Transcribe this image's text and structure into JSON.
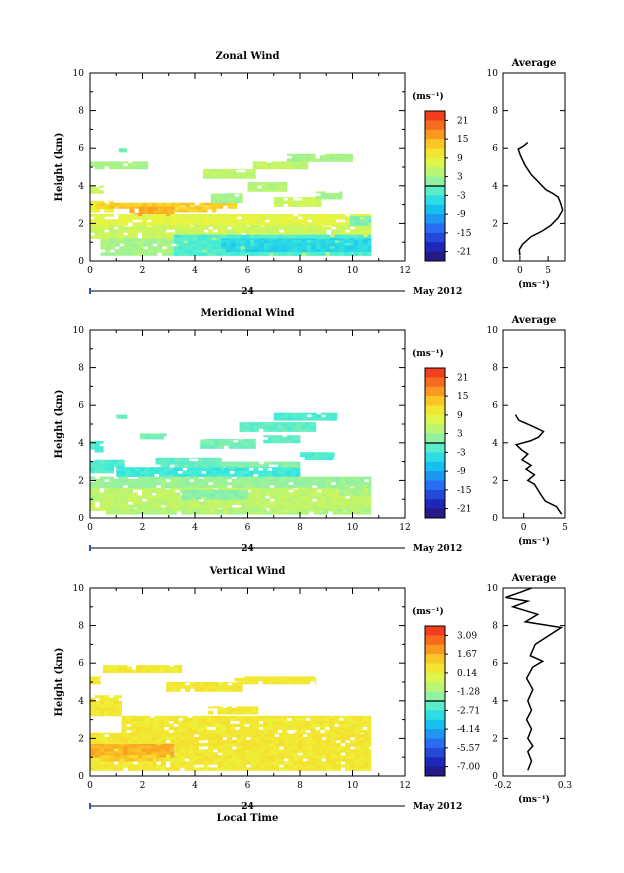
{
  "chart_data": [
    {
      "type": "heatmap",
      "title": "Zonal Wind",
      "ylabel": "Height (km)",
      "xlabel": "",
      "xlim": [
        0,
        12
      ],
      "ylim": [
        0,
        10
      ],
      "xticks": [
        "0",
        "2",
        "4",
        "6",
        "8",
        "10",
        "12"
      ],
      "yticks": [
        "0",
        "2",
        "4",
        "6",
        "8",
        "10"
      ],
      "date_marker": "24",
      "date_label": "May 2012",
      "colorbar": {
        "unit": "(ms⁻¹)",
        "ticks": [
          "21",
          "15",
          "9",
          "3",
          "-3",
          "-9",
          "-15",
          "-21"
        ],
        "min": -24,
        "max": 24
      },
      "regions": [
        {
          "x0": 0,
          "x1": 2.2,
          "y0": 4.9,
          "y1": 5.3,
          "v": 3
        },
        {
          "x0": 0,
          "x1": 0.5,
          "y0": 3.6,
          "y1": 4.0,
          "v": 6
        },
        {
          "x0": 0,
          "x1": 0.9,
          "y0": 2.6,
          "y1": 3.2,
          "v": 9
        },
        {
          "x0": 0.2,
          "x1": 5.6,
          "y0": 2.8,
          "y1": 3.1,
          "v": 13
        },
        {
          "x0": 1.5,
          "x1": 3.2,
          "y0": 2.4,
          "y1": 2.9,
          "v": 15
        },
        {
          "x0": 3.2,
          "x1": 4.8,
          "y0": 2.6,
          "y1": 2.9,
          "v": 13
        },
        {
          "x0": 0,
          "x1": 10.7,
          "y0": 1.9,
          "y1": 2.5,
          "v": 8
        },
        {
          "x0": 0,
          "x1": 10.7,
          "y0": 1.2,
          "y1": 1.9,
          "v": 6
        },
        {
          "x0": 0.4,
          "x1": 10.7,
          "y0": 0.3,
          "y1": 1.2,
          "v": 3
        },
        {
          "x0": 3.2,
          "x1": 10.7,
          "y0": 0.3,
          "y1": 1.4,
          "v": -2
        },
        {
          "x0": 5.0,
          "x1": 10.7,
          "y0": 0.5,
          "y1": 1.2,
          "v": -5
        },
        {
          "x0": 4.6,
          "x1": 5.8,
          "y0": 3.1,
          "y1": 3.6,
          "v": 3
        },
        {
          "x0": 6.0,
          "x1": 7.5,
          "y0": 3.7,
          "y1": 4.2,
          "v": 4
        },
        {
          "x0": 7.0,
          "x1": 8.8,
          "y0": 2.9,
          "y1": 3.4,
          "v": 6
        },
        {
          "x0": 8.6,
          "x1": 9.6,
          "y0": 3.3,
          "y1": 3.7,
          "v": 3
        },
        {
          "x0": 4.3,
          "x1": 6.3,
          "y0": 4.4,
          "y1": 4.9,
          "v": 5
        },
        {
          "x0": 6.2,
          "x1": 8.3,
          "y0": 4.9,
          "y1": 5.3,
          "v": 5
        },
        {
          "x0": 7.5,
          "x1": 10.0,
          "y0": 5.3,
          "y1": 5.7,
          "v": 3
        },
        {
          "x0": 1.1,
          "x1": 1.4,
          "y0": 5.8,
          "y1": 6.0,
          "v": 0
        },
        {
          "x0": 9.9,
          "x1": 10.7,
          "y0": 1.9,
          "y1": 2.4,
          "v": 0
        }
      ],
      "average": {
        "title": "Average",
        "unit": "(ms⁻¹)",
        "xlim": [
          -3,
          8
        ],
        "xticks": [
          0,
          5
        ],
        "ylim": [
          0,
          10
        ],
        "yticks": [
          "0",
          "2",
          "4",
          "6",
          "8",
          "10"
        ],
        "profile": [
          [
            0.0,
            0.3
          ],
          [
            -0.1,
            0.6
          ],
          [
            0.5,
            0.9
          ],
          [
            2.0,
            1.3
          ],
          [
            4.0,
            1.6
          ],
          [
            5.5,
            1.9
          ],
          [
            6.8,
            2.3
          ],
          [
            7.6,
            2.7
          ],
          [
            7.2,
            3.1
          ],
          [
            6.8,
            3.4
          ],
          [
            5.8,
            3.6
          ],
          [
            4.6,
            3.8
          ],
          [
            3.3,
            4.2
          ],
          [
            2.0,
            4.6
          ],
          [
            0.9,
            5.1
          ],
          [
            0.1,
            5.6
          ],
          [
            -0.3,
            5.95
          ],
          [
            0.6,
            6.1
          ],
          [
            1.4,
            6.3
          ]
        ]
      }
    },
    {
      "type": "heatmap",
      "title": "Meridional Wind",
      "ylabel": "Height (km)",
      "xlabel": "",
      "xlim": [
        0,
        12
      ],
      "ylim": [
        0,
        10
      ],
      "xticks": [
        "0",
        "2",
        "4",
        "6",
        "8",
        "10",
        "12"
      ],
      "yticks": [
        "0",
        "2",
        "4",
        "6",
        "8",
        "10"
      ],
      "date_marker": "24",
      "date_label": "May 2012",
      "colorbar": {
        "unit": "(ms⁻¹)",
        "ticks": [
          "21",
          "15",
          "9",
          "3",
          "-3",
          "-9",
          "-15",
          "-21"
        ],
        "min": -24,
        "max": 24
      },
      "regions": [
        {
          "x0": 1.0,
          "x1": 1.4,
          "y0": 5.3,
          "y1": 5.5,
          "v": -1
        },
        {
          "x0": 0,
          "x1": 0.5,
          "y0": 3.5,
          "y1": 4.1,
          "v": -2
        },
        {
          "x0": 0,
          "x1": 1.3,
          "y0": 2.4,
          "y1": 3.1,
          "v": -2
        },
        {
          "x0": 1.0,
          "x1": 8.0,
          "y0": 2.2,
          "y1": 2.7,
          "v": -3
        },
        {
          "x0": 2.5,
          "x1": 5.0,
          "y0": 2.7,
          "y1": 3.2,
          "v": -1
        },
        {
          "x0": 5.0,
          "x1": 8.0,
          "y0": 2.7,
          "y1": 3.0,
          "v": 1
        },
        {
          "x0": 0,
          "x1": 10.7,
          "y0": 1.6,
          "y1": 2.2,
          "v": 2
        },
        {
          "x0": 0,
          "x1": 10.7,
          "y0": 0.4,
          "y1": 1.6,
          "v": 5
        },
        {
          "x0": 0.6,
          "x1": 10.7,
          "y0": 0.2,
          "y1": 0.5,
          "v": 4
        },
        {
          "x0": 3.5,
          "x1": 6.0,
          "y0": 1.0,
          "y1": 1.5,
          "v": 1
        },
        {
          "x0": 4.2,
          "x1": 6.3,
          "y0": 3.7,
          "y1": 4.2,
          "v": 0
        },
        {
          "x0": 5.7,
          "x1": 8.6,
          "y0": 4.6,
          "y1": 5.1,
          "v": -1
        },
        {
          "x0": 7.0,
          "x1": 9.4,
          "y0": 5.2,
          "y1": 5.6,
          "v": -2
        },
        {
          "x0": 6.6,
          "x1": 8.0,
          "y0": 4.0,
          "y1": 4.4,
          "v": -1
        },
        {
          "x0": 8.0,
          "x1": 9.3,
          "y0": 3.1,
          "y1": 3.5,
          "v": -2
        },
        {
          "x0": 9.5,
          "x1": 10.7,
          "y0": 1.2,
          "y1": 1.8,
          "v": 3
        },
        {
          "x0": 1.9,
          "x1": 2.9,
          "y0": 4.2,
          "y1": 4.5,
          "v": 0
        }
      ],
      "average": {
        "title": "Average",
        "unit": "(ms⁻¹)",
        "xlim": [
          -2.5,
          5
        ],
        "xticks": [
          0,
          5
        ],
        "ylim": [
          0,
          10
        ],
        "yticks": [
          "0",
          "2",
          "4",
          "6",
          "8",
          "10"
        ],
        "profile": [
          [
            4.6,
            0.2
          ],
          [
            4.0,
            0.6
          ],
          [
            2.6,
            0.9
          ],
          [
            2.0,
            1.3
          ],
          [
            1.3,
            1.8
          ],
          [
            0.5,
            2.0
          ],
          [
            1.3,
            2.3
          ],
          [
            0.3,
            2.6
          ],
          [
            0.9,
            2.8
          ],
          [
            -0.2,
            3.1
          ],
          [
            0.5,
            3.4
          ],
          [
            -0.2,
            3.6
          ],
          [
            -0.9,
            3.9
          ],
          [
            0.8,
            4.1
          ],
          [
            1.8,
            4.3
          ],
          [
            2.4,
            4.6
          ],
          [
            1.0,
            4.9
          ],
          [
            -0.6,
            5.2
          ],
          [
            -1.0,
            5.5
          ]
        ]
      }
    },
    {
      "type": "heatmap",
      "title": "Vertical Wind",
      "ylabel": "Height (km)",
      "xlabel": "Local Time",
      "xlim": [
        0,
        12
      ],
      "ylim": [
        0,
        10
      ],
      "xticks": [
        "0",
        "2",
        "4",
        "6",
        "8",
        "10",
        "12"
      ],
      "yticks": [
        "0",
        "2",
        "4",
        "6",
        "8",
        "10"
      ],
      "date_marker": "24",
      "date_label": "May 2012",
      "colorbar": {
        "unit": "(ms⁻¹)",
        "ticks": [
          "3.09",
          "1.67",
          "0.14",
          "-1.28",
          "-2.71",
          "-4.14",
          "-5.57",
          "-7.00"
        ],
        "min": -7.7,
        "max": 3.8
      },
      "regions": [
        {
          "x0": 0,
          "x1": 0.4,
          "y0": 4.9,
          "y1": 5.3,
          "v": 0.6
        },
        {
          "x0": 0.5,
          "x1": 3.5,
          "y0": 5.5,
          "y1": 5.9,
          "v": 0.5
        },
        {
          "x0": 2.9,
          "x1": 5.8,
          "y0": 4.5,
          "y1": 5.0,
          "v": 0.5
        },
        {
          "x0": 5.5,
          "x1": 8.6,
          "y0": 4.9,
          "y1": 5.3,
          "v": 0.5
        },
        {
          "x0": 0,
          "x1": 1.2,
          "y0": 3.2,
          "y1": 4.3,
          "v": 0.5
        },
        {
          "x0": 1.2,
          "x1": 10.7,
          "y0": 2.3,
          "y1": 3.2,
          "v": 0.5
        },
        {
          "x0": 0,
          "x1": 10.7,
          "y0": 1.6,
          "y1": 2.3,
          "v": 0.6
        },
        {
          "x0": 0,
          "x1": 10.7,
          "y0": 0.3,
          "y1": 1.6,
          "v": 0.5
        },
        {
          "x0": 0,
          "x1": 3.2,
          "y0": 1.0,
          "y1": 1.7,
          "v": 1.6
        },
        {
          "x0": 0.4,
          "x1": 2.6,
          "y0": 0.8,
          "y1": 1.1,
          "v": 1.2
        },
        {
          "x0": 4.5,
          "x1": 6.4,
          "y0": 3.3,
          "y1": 3.7,
          "v": 0.5
        }
      ],
      "average": {
        "title": "Average",
        "unit": "(ms⁻¹)",
        "xlim": [
          -0.2,
          0.3
        ],
        "xticks": [
          -0.2,
          0.3
        ],
        "ylim": [
          0,
          10
        ],
        "yticks": [
          "0",
          "2",
          "4",
          "6",
          "8",
          "10"
        ],
        "profile": [
          [
            0.0,
            0.3
          ],
          [
            0.03,
            0.8
          ],
          [
            0.0,
            1.3
          ],
          [
            0.04,
            1.6
          ],
          [
            0.0,
            2.0
          ],
          [
            0.03,
            2.5
          ],
          [
            -0.01,
            3.0
          ],
          [
            0.03,
            3.5
          ],
          [
            0.0,
            4.0
          ],
          [
            0.04,
            4.6
          ],
          [
            -0.01,
            5.2
          ],
          [
            0.04,
            5.8
          ],
          [
            0.12,
            6.1
          ],
          [
            0.02,
            6.4
          ],
          [
            0.06,
            7.0
          ],
          [
            0.27,
            7.9
          ],
          [
            -0.02,
            8.2
          ],
          [
            0.08,
            8.6
          ],
          [
            -0.12,
            9.0
          ],
          [
            0.0,
            9.3
          ],
          [
            -0.18,
            9.5
          ],
          [
            -0.05,
            9.8
          ],
          [
            0.03,
            10.0
          ]
        ]
      }
    }
  ]
}
